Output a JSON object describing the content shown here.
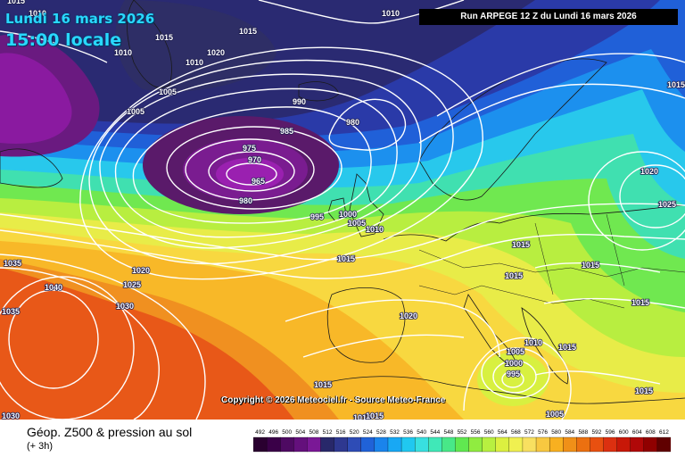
{
  "header": {
    "date": "Lundi 16 mars 2026",
    "time": "15:00 locale",
    "run": "Run ARPEGE 12 Z du Lundi 16 mars 2026"
  },
  "copyright": "Copyright © 2026 Meteociel.fr - Source Meteo-France",
  "legend": {
    "title": "Géop. Z500 & pression au sol",
    "subtitle": "(+ 3h)",
    "scale_values": [
      "492",
      "496",
      "500",
      "504",
      "508",
      "512",
      "516",
      "520",
      "524",
      "528",
      "532",
      "536",
      "540",
      "544",
      "548",
      "552",
      "556",
      "560",
      "564",
      "568",
      "572",
      "576",
      "580",
      "584",
      "588",
      "592",
      "596",
      "600",
      "604",
      "608",
      "612"
    ],
    "scale_colors": [
      "#2a0030",
      "#3a0048",
      "#4e0a62",
      "#64107c",
      "#7a1896",
      "#28286a",
      "#2e3890",
      "#2e4cb6",
      "#2062d8",
      "#1a84ec",
      "#18a8f4",
      "#20c8f0",
      "#38e0e0",
      "#40e8b8",
      "#48e888",
      "#60e850",
      "#90ec40",
      "#b8f040",
      "#dcf040",
      "#f0f050",
      "#f8e060",
      "#f8c840",
      "#f8b020",
      "#f09018",
      "#ec7010",
      "#e85010",
      "#dc3010",
      "#c81808",
      "#b00808",
      "#900000",
      "#600000"
    ]
  },
  "isobars": [
    "1015",
    "1010",
    "1010",
    "1015",
    "1020",
    "1015",
    "1010",
    "1010",
    "1005",
    "1005",
    "990",
    "985",
    "980",
    "975",
    "970",
    "965",
    "980",
    "995",
    "1000",
    "1005",
    "1010",
    "1015",
    "1020",
    "1025",
    "1030",
    "1035",
    "1040",
    "1035",
    "1030",
    "1020",
    "1015",
    "1015",
    "1015",
    "1015",
    "1020",
    "1025",
    "1010",
    "1015",
    "1005",
    "1000",
    "995",
    "1015",
    "1010",
    "1015",
    "1005",
    "1015",
    "1015"
  ]
}
